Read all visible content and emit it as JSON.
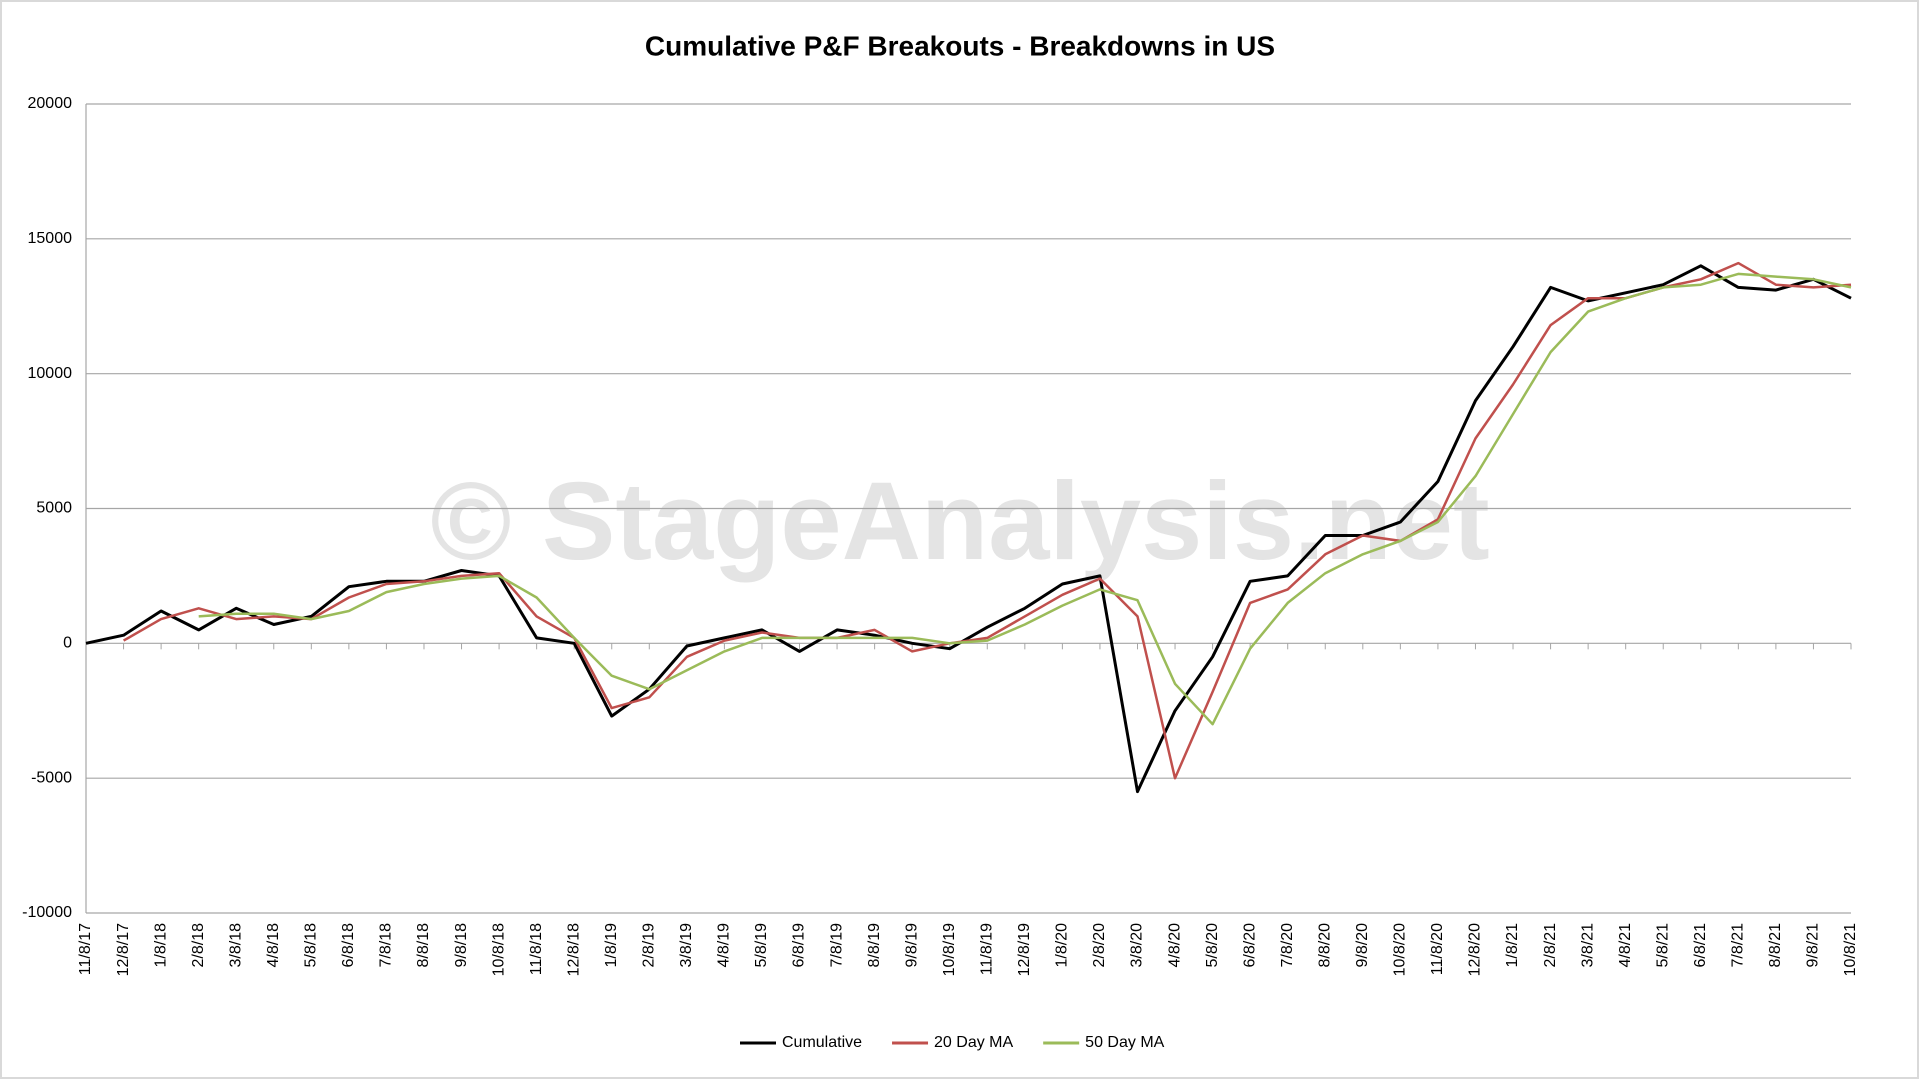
{
  "chart_data": {
    "type": "line",
    "title": "Cumulative P&F Breakouts - Breakdowns in US",
    "watermark": "© StageAnalysis.net",
    "categories": [
      "11/8/17",
      "12/8/17",
      "1/8/18",
      "2/8/18",
      "3/8/18",
      "4/8/18",
      "5/8/18",
      "6/8/18",
      "7/8/18",
      "8/8/18",
      "9/8/18",
      "10/8/18",
      "11/8/18",
      "12/8/18",
      "1/8/19",
      "2/8/19",
      "3/8/19",
      "4/8/19",
      "5/8/19",
      "6/8/19",
      "7/8/19",
      "8/8/19",
      "9/8/19",
      "10/8/19",
      "11/8/19",
      "12/8/19",
      "1/8/20",
      "2/8/20",
      "3/8/20",
      "4/8/20",
      "5/8/20",
      "6/8/20",
      "7/8/20",
      "8/8/20",
      "9/8/20",
      "10/8/20",
      "11/8/20",
      "12/8/20",
      "1/8/21",
      "2/8/21",
      "3/8/21",
      "4/8/21",
      "5/8/21",
      "6/8/21",
      "7/8/21",
      "8/8/21",
      "9/8/21",
      "10/8/21"
    ],
    "series": [
      {
        "name": "Cumulative",
        "color": "#000000",
        "values": [
          0,
          300,
          1200,
          500,
          1300,
          700,
          1000,
          2100,
          2300,
          2300,
          2700,
          2500,
          200,
          0,
          -2700,
          -1700,
          -100,
          200,
          500,
          -300,
          500,
          300,
          0,
          -200,
          600,
          1300,
          2200,
          2500,
          -5500,
          -2500,
          -500,
          2300,
          2500,
          4000,
          4000,
          4500,
          6000,
          9000,
          11000,
          13200,
          12700,
          13000,
          13300,
          14000,
          13200,
          13100,
          13500,
          12800
        ]
      },
      {
        "name": "20 Day MA",
        "color": "#c0504d",
        "values": [
          null,
          100,
          900,
          1300,
          900,
          1000,
          900,
          1700,
          2200,
          2300,
          2500,
          2600,
          1000,
          200,
          -2400,
          -2000,
          -500,
          100,
          400,
          200,
          200,
          500,
          -300,
          0,
          200,
          1000,
          1800,
          2400,
          1000,
          -5000,
          -1800,
          1500,
          2000,
          3300,
          4000,
          3800,
          4600,
          7600,
          9600,
          11800,
          12800,
          12800,
          13200,
          13500,
          14100,
          13300,
          13200,
          13300
        ]
      },
      {
        "name": "50 Day MA",
        "color": "#9bbb59",
        "values": [
          null,
          null,
          null,
          1000,
          1100,
          1100,
          900,
          1200,
          1900,
          2200,
          2400,
          2500,
          1700,
          200,
          -1200,
          -1700,
          -1000,
          -300,
          200,
          200,
          200,
          200,
          200,
          0,
          100,
          700,
          1400,
          2000,
          1600,
          -1500,
          -3000,
          -200,
          1500,
          2600,
          3300,
          3800,
          4500,
          6200,
          8500,
          10800,
          12300,
          12800,
          13200,
          13300,
          13700,
          13600,
          13500,
          13200
        ]
      }
    ],
    "ylim": [
      -10000,
      20000
    ],
    "yticks": [
      -10000,
      -5000,
      0,
      5000,
      10000,
      15000,
      20000
    ],
    "grid": true,
    "legend": "bottom"
  }
}
